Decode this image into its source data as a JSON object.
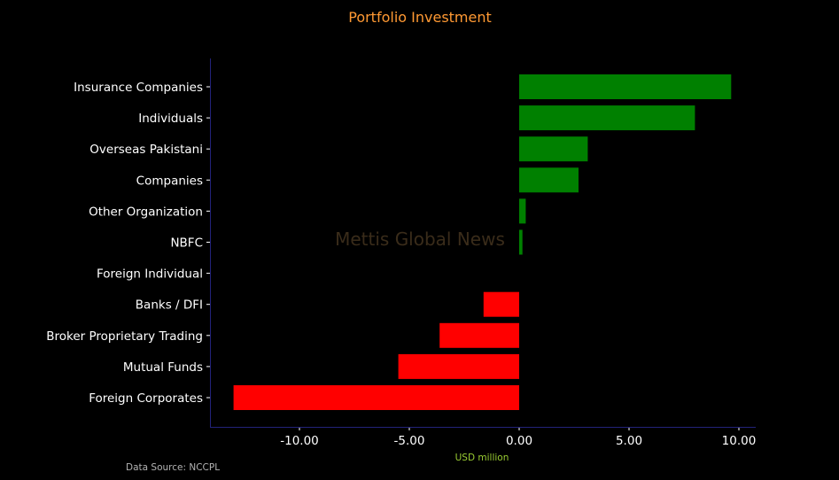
{
  "chart_data": {
    "type": "bar",
    "orientation": "horizontal",
    "title": "Portfolio Investment",
    "xlabel": "USD million",
    "ylabel": "",
    "categories": [
      "Insurance Companies",
      "Individuals",
      "Overseas Pakistani",
      "Companies",
      "Other Organization",
      "NBFC",
      "Foreign Individual",
      "Banks / DFI",
      "Broker Proprietary Trading",
      "Mutual Funds",
      "Foreign Corporates "
    ],
    "values": [
      9.65,
      8.0,
      3.12,
      2.7,
      0.3,
      0.15,
      0.0,
      -1.62,
      -3.62,
      -5.5,
      -13.0
    ],
    "xlim": [
      -14.0,
      10.8
    ],
    "xticks": [
      -10,
      -5,
      0,
      5,
      10
    ],
    "xtick_labels": [
      "-10.00",
      "-5.00",
      "0.00",
      "5.00",
      "10.00"
    ],
    "grid": false,
    "legend": "none",
    "source": "Data Source: NCCPL",
    "watermark": "Mettis Global News"
  },
  "colors": {
    "background": "#000000",
    "positive": "#008000",
    "negative": "#ff0000",
    "title": "#ff9933",
    "xlabel": "#9acd32",
    "text": "#ffffff",
    "axis": "#22227a",
    "source": "#b3b3b3",
    "watermark": "#3a2c1a"
  }
}
